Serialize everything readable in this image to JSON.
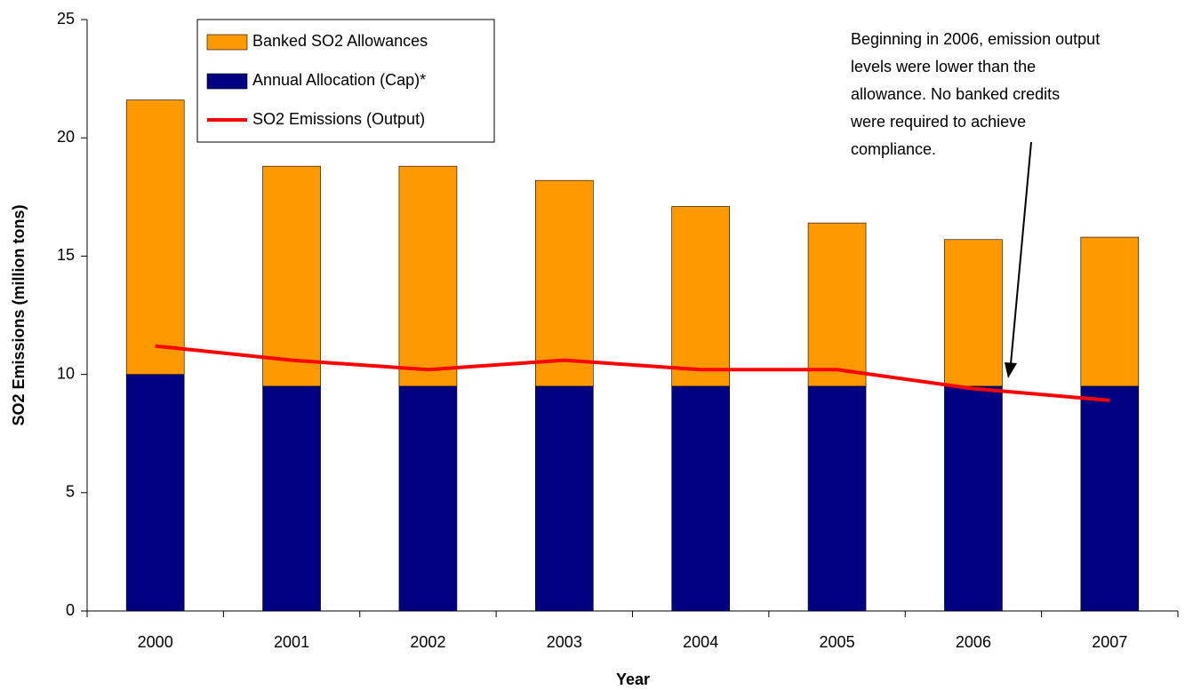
{
  "chart_data": {
    "type": "bar",
    "y_label": "SO2 Emissions (million tons)",
    "x_label": "Year",
    "categories": [
      "2000",
      "2001",
      "2002",
      "2003",
      "2004",
      "2005",
      "2006",
      "2007"
    ],
    "series": [
      {
        "name": "Annual Allocation (Cap)*",
        "type": "bar",
        "color": "#000080",
        "values": [
          10.0,
          9.5,
          9.5,
          9.5,
          9.5,
          9.5,
          9.5,
          9.5
        ]
      },
      {
        "name": "Banked SO2 Allowances",
        "type": "bar",
        "color": "#ff9900",
        "values": [
          11.6,
          9.3,
          9.3,
          8.7,
          7.6,
          6.9,
          6.2,
          6.3
        ]
      },
      {
        "name": "SO2 Emissions (Output)",
        "type": "line",
        "color": "#ff0000",
        "values": [
          11.2,
          10.6,
          10.2,
          10.6,
          10.2,
          10.2,
          9.4,
          8.9
        ]
      }
    ],
    "stacked": true,
    "ylim": [
      0,
      25
    ],
    "yticks": [
      0,
      5,
      10,
      15,
      20,
      25
    ],
    "grid": false,
    "annotation": [
      "Beginning in 2006, emission output",
      "levels were lower than the",
      "allowance.  No banked credits",
      "were required to achieve",
      "compliance."
    ]
  }
}
